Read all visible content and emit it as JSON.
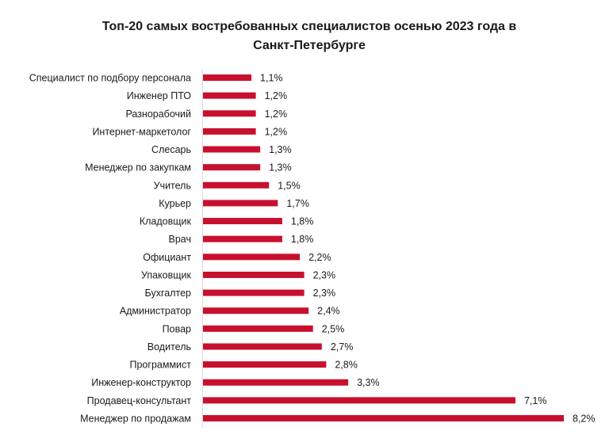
{
  "chart_data": {
    "type": "bar",
    "orientation": "horizontal",
    "title": "Топ-20 самых востребованных специалистов осенью 2023 года в Санкт-Петербурге",
    "title_lines": [
      "Топ-20 самых востребованных специалистов осенью 2023 года в",
      "Санкт-Петербурге"
    ],
    "categories": [
      "Специалист по подбору персонала",
      "Инженер ПТО",
      "Разнорабочий",
      "Интернет-маркетолог",
      "Слесарь",
      "Менеджер по закупкам",
      "Учитель",
      "Курьер",
      "Кладовщик",
      "Врач",
      "Официант",
      "Упаковщик",
      "Бухгалтер",
      "Администратор",
      "Повар",
      "Водитель",
      "Программист",
      "Инженер-конструктор",
      "Продавец-консультант",
      "Менеджер по продажам"
    ],
    "values": [
      1.1,
      1.2,
      1.2,
      1.2,
      1.3,
      1.3,
      1.5,
      1.7,
      1.8,
      1.8,
      2.2,
      2.3,
      2.3,
      2.4,
      2.5,
      2.7,
      2.8,
      3.3,
      7.1,
      8.2
    ],
    "data_labels": [
      "1,1%",
      "1,2%",
      "1,2%",
      "1,2%",
      "1,3%",
      "1,3%",
      "1,5%",
      "1,7%",
      "1,8%",
      "1,8%",
      "2,2%",
      "2,3%",
      "2,3%",
      "2,4%",
      "2,5%",
      "2,7%",
      "2,8%",
      "3,3%",
      "7,1%",
      "8,2%"
    ],
    "unit": "%",
    "xlim": [
      0,
      8.2
    ],
    "grid": false,
    "legend": "none",
    "bar_color": "#c8102e",
    "axis_color": "#d9d9d9"
  }
}
